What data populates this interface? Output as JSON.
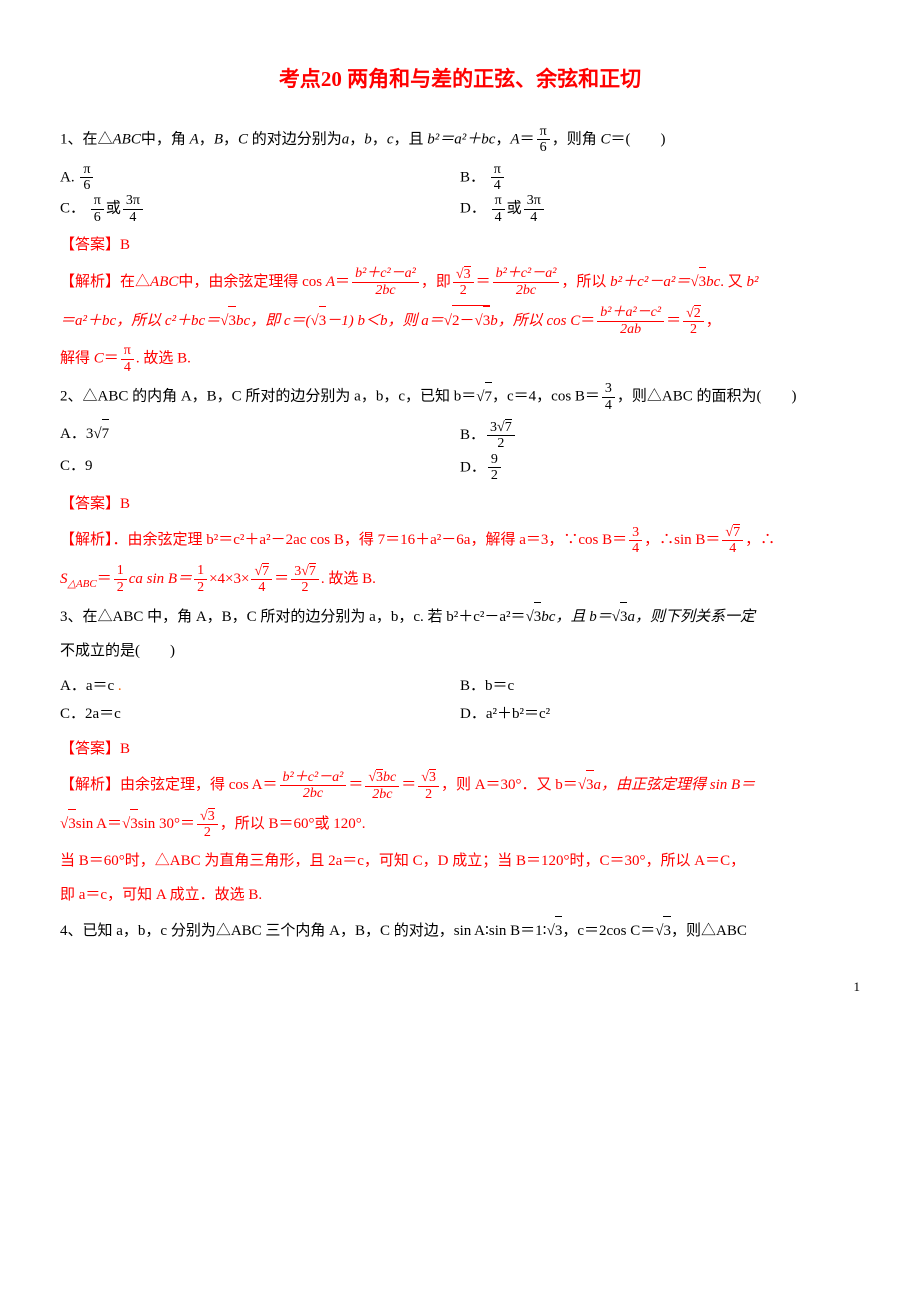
{
  "title": "考点20 两角和与差的正弦、余弦和正切",
  "q1": {
    "stem_pre": "1、在△",
    "stem_abc": "ABC",
    "stem_mid": "中，角 ",
    "A": "A",
    "B": "B",
    "C": "C",
    "stem_mid2": " 的对边分别为",
    "a": "a",
    "b": "b",
    "c": "c",
    "stem_mid3": "，且 ",
    "eq": "b²＝a²＋bc",
    "stem_mid4": "，",
    "Avar": "A",
    "stem_eq2": "＝",
    "frac_num": "π",
    "frac_den": "6",
    "stem_end": "，则角 ",
    "Cvar": "C",
    "stem_paren": "＝(　　)",
    "optA_label": "A.",
    "optA_num": "π",
    "optA_den": "6",
    "optB_label": "B．",
    "optB_num": "π",
    "optB_den": "4",
    "optC_label": "C．",
    "optC_num1": "π",
    "optC_den1": "6",
    "optC_or": "或",
    "optC_num2": "3π",
    "optC_den2": "4",
    "optD_label": "D．",
    "optD_num1": "π",
    "optD_den1": "4",
    "optD_or": "或",
    "optD_num2": "3π",
    "optD_den2": "4",
    "answer_label": "【答案】B",
    "expl_label": "【解析】",
    "expl_1": "在△",
    "expl_2": "中，由余弦定理得 cos ",
    "expl_3": "＝",
    "expl_f1n": "b²＋c²－a²",
    "expl_f1d": "2bc",
    "expl_4": "，即",
    "expl_f2n": "3",
    "expl_f2d": "2",
    "expl_5": "＝",
    "expl_f3n": "b²＋c²－a²",
    "expl_f3d": "2bc",
    "expl_6": "，所以 ",
    "expl_7": "b²＋c²－a²＝",
    "expl_8": "bc",
    "expl_9": ". 又 ",
    "expl_10": "b²",
    "expl_line2_1": "＝a²＋bc，所以 c²＋bc＝",
    "expl_line2_2": "bc，即 c＝(",
    "expl_line2_3": "－1) b＜b，则 a＝",
    "expl_line2_sqrt": "2－",
    "expl_line2_4": "b，所以 cos ",
    "expl_line2_5": "＝",
    "expl_f4n": "b²＋a²－c²",
    "expl_f4d": "2ab",
    "expl_line2_6": "＝",
    "expl_f5n": "2",
    "expl_f5d": "2",
    "expl_line2_7": "，",
    "expl_line3_1": "解得 ",
    "expl_line3_2": "＝",
    "expl_f6n": "π",
    "expl_f6d": "4",
    "expl_line3_3": ". 故选 B."
  },
  "q2": {
    "stem": "2、△ABC 的内角 A，B，C 所对的边分别为 a，b，c，已知 b＝",
    "sqrt7": "7",
    "stem2": "，c＝4，cos B＝",
    "fn": "3",
    "fd": "4",
    "stem3": "，则△ABC 的面积为(　　)",
    "optA": "A．3",
    "optA_sqrt": "7",
    "optB": "B．",
    "optB_n": "3",
    "optB_sqrt": "7",
    "optB_d": "2",
    "optC": "C．9",
    "optD": "D．",
    "optD_n": "9",
    "optD_d": "2",
    "answer_label": "【答案】B",
    "expl_label": "【解析】",
    "expl_1": "．由余弦定理 b²＝c²＋a²－2ac cos B，得 7＝16＋a²－6a，解得 a＝3，∵cos B＝",
    "e_f1n": "3",
    "e_f1d": "4",
    "expl_2": "，∴sin B＝",
    "e_f2n": "7",
    "e_f2d": "4",
    "expl_3": "，∴",
    "expl_l2_1": "S",
    "expl_l2_sub": "△ABC",
    "expl_l2_2": "＝",
    "e_f3n": "1",
    "e_f3d": "2",
    "expl_l2_3": "ca sin B＝",
    "e_f4n": "1",
    "e_f4d": "2",
    "expl_l2_4": "×4×3×",
    "e_f5n": "7",
    "e_f5d": "4",
    "expl_l2_5": "＝",
    "e_f6n": "3",
    "e_f6sqrt": "7",
    "e_f6d": "2",
    "expl_l2_6": ". 故选 B."
  },
  "q3": {
    "stem": "3、在△ABC 中，角 A，B，C 所对的边分别为 a，b，c. 若 b²＋c²－a²＝",
    "sqrt3": "3",
    "stem2": "bc，且 b＝",
    "stem3": "a，则下列关系一定",
    "stem4": "不成立的是(　　)",
    "optA": "A．a＝c",
    "optB": "B．b＝c",
    "optC": "C．2a＝c",
    "optD": "D．a²＋b²＝c²",
    "answer_label": "【答案】B",
    "expl_label": "【解析】",
    "expl_1": "由余弦定理，得 cos A＝",
    "f1n": "b²＋c²－a²",
    "f1d": "2bc",
    "expl_2": "＝",
    "f2n": "3",
    "f2nsqrt": "bc",
    "f2d": "2bc",
    "expl_3": "＝",
    "f3n": "3",
    "f3d": "2",
    "expl_4": "，则 A＝30°．又 b＝",
    "expl_5": "a，由正弦定理得 sin B＝",
    "expl_l2_1": "sin A＝",
    "expl_l2_2": "sin 30°＝",
    "f4n": "3",
    "f4d": "2",
    "expl_l2_3": "，所以 B＝60°或 120°.",
    "expl_l3": "当 B＝60°时，△ABC 为直角三角形，且 2a＝c，可知 C，D 成立；当 B＝120°时，C＝30°，所以 A＝C，",
    "expl_l4": "即 a＝c，可知 A 成立．故选 B."
  },
  "q4": {
    "stem": "4、已知 a，b，c 分别为△ABC 三个内角 A，B，C 的对边，sin A∶sin B＝1∶",
    "sqrt3": "3",
    "stem2": "，c＝2cos C＝",
    "stem3": "，则△ABC"
  },
  "pagenum": "1"
}
